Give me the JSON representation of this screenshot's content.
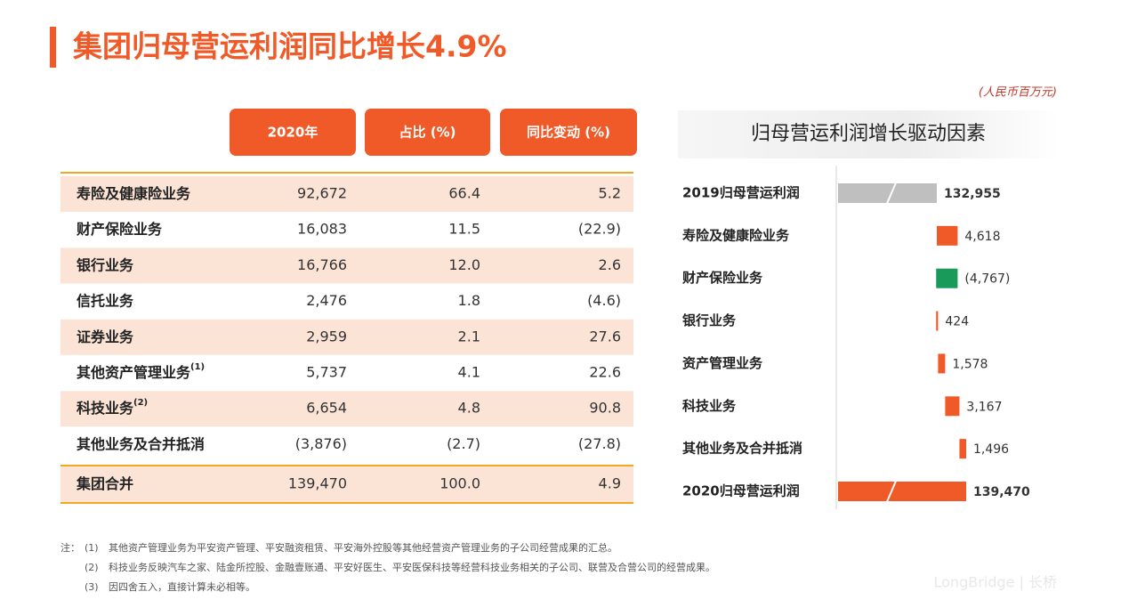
{
  "header": {
    "title": "集团归母营运利润同比增长4.9%"
  },
  "table": {
    "columns": [
      "2020年",
      "占比 (%)",
      "同比变动 (%)"
    ],
    "rows": [
      {
        "label": "寿险及健康险业务",
        "cells": [
          "92,672",
          "66.4",
          "5.2"
        ]
      },
      {
        "label": "财产保险业务",
        "cells": [
          "16,083",
          "11.5",
          "(22.9)"
        ]
      },
      {
        "label": "银行业务",
        "cells": [
          "16,766",
          "12.0",
          "2.6"
        ]
      },
      {
        "label": "信托业务",
        "cells": [
          "2,476",
          "1.8",
          "(4.6)"
        ]
      },
      {
        "label": "证券业务",
        "cells": [
          "2,959",
          "2.1",
          "27.6"
        ]
      },
      {
        "label": "其他资产管理业务",
        "sup": "(1)",
        "cells": [
          "5,737",
          "4.1",
          "22.6"
        ]
      },
      {
        "label": "科技业务",
        "sup": "(2)",
        "cells": [
          "6,654",
          "4.8",
          "90.8"
        ]
      },
      {
        "label": "其他业务及合并抵消",
        "cells": [
          "(3,876)",
          "(2.7)",
          "(27.8)"
        ]
      }
    ],
    "total": {
      "label": "集团合并",
      "cells": [
        "139,470",
        "100.0",
        "4.9"
      ]
    }
  },
  "chart_data": {
    "type": "waterfall",
    "title": "归母营运利润增长驱动因素",
    "unit": "(人民币百万元)",
    "categories": [
      "2019归母营运利润",
      "寿险及健康险业务",
      "财产保险业务",
      "银行业务",
      "资产管理业务",
      "科技业务",
      "其他业务及合并抵消",
      "2020归母营运利润"
    ],
    "values": [
      132955,
      4618,
      -4767,
      424,
      1578,
      3167,
      1496,
      139470
    ],
    "value_labels": [
      "132,955",
      "4,618",
      "(4,767)",
      "424",
      "1,578",
      "3,167",
      "1,496",
      "139,470"
    ],
    "totals": [
      true,
      false,
      false,
      false,
      false,
      false,
      false,
      true
    ],
    "colors": [
      "#bfbfbf",
      "#f05a28",
      "#1a9a5a",
      "#f05a28",
      "#f05a28",
      "#f05a28",
      "#f05a28",
      "#f05a28"
    ]
  },
  "notes": {
    "label": "注：",
    "items": [
      {
        "marker": "(1)",
        "text": "其他资产管理业务为平安资产管理、平安融资租赁、平安海外控股等其他经营资产管理业务的子公司经营成果的汇总。"
      },
      {
        "marker": "(2)",
        "text": "科技业务反映汽车之家、陆金所控股、金融壹账通、平安好医生、平安医保科技等经营科技业务相关的子公司、联营及合营公司的经营成果。"
      },
      {
        "marker": "(3)",
        "text": "因四舍五入，直接计算未必相等。"
      }
    ]
  },
  "watermark": "LongBridge | 长桥"
}
